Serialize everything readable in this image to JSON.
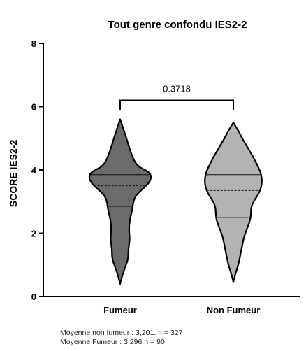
{
  "chart_data": {
    "type": "violin",
    "title": "Tout genre confondu IES2-2",
    "xlabel": "",
    "ylabel": "SCORE IES2-2",
    "ylim": [
      0,
      8
    ],
    "yticks": [
      0,
      2,
      4,
      6,
      8
    ],
    "categories": [
      "Fumeur",
      "Non Fumeur"
    ],
    "comparison": {
      "between": [
        "Fumeur",
        "Non Fumeur"
      ],
      "p_value": "0.3718"
    },
    "series": [
      {
        "category": "Fumeur",
        "color": "#6b6b6b",
        "min": 0.4,
        "max": 5.6,
        "median": 3.5,
        "q1": 2.85,
        "q3": 3.85,
        "profile": [
          [
            0.4,
            0.0
          ],
          [
            0.6,
            0.05
          ],
          [
            0.9,
            0.15
          ],
          [
            1.2,
            0.26
          ],
          [
            1.5,
            0.26
          ],
          [
            1.8,
            0.31
          ],
          [
            2.1,
            0.28
          ],
          [
            2.4,
            0.3
          ],
          [
            2.7,
            0.38
          ],
          [
            3.0,
            0.42
          ],
          [
            3.2,
            0.5
          ],
          [
            3.4,
            0.72
          ],
          [
            3.6,
            0.93
          ],
          [
            3.8,
            1.0
          ],
          [
            3.95,
            0.9
          ],
          [
            4.1,
            0.58
          ],
          [
            4.3,
            0.44
          ],
          [
            4.5,
            0.36
          ],
          [
            4.8,
            0.26
          ],
          [
            5.0,
            0.2
          ],
          [
            5.3,
            0.1
          ],
          [
            5.6,
            0.0
          ]
        ]
      },
      {
        "category": "Non Fumeur",
        "color": "#b3b3b3",
        "min": 0.45,
        "max": 5.5,
        "median": 3.35,
        "q1": 2.5,
        "q3": 3.85,
        "profile": [
          [
            0.45,
            0.0
          ],
          [
            0.7,
            0.06
          ],
          [
            1.0,
            0.16
          ],
          [
            1.3,
            0.22
          ],
          [
            1.6,
            0.28
          ],
          [
            1.9,
            0.34
          ],
          [
            2.2,
            0.46
          ],
          [
            2.5,
            0.56
          ],
          [
            2.8,
            0.56
          ],
          [
            3.0,
            0.64
          ],
          [
            3.3,
            0.84
          ],
          [
            3.6,
            0.92
          ],
          [
            3.9,
            0.88
          ],
          [
            4.2,
            0.74
          ],
          [
            4.5,
            0.58
          ],
          [
            4.8,
            0.4
          ],
          [
            5.0,
            0.28
          ],
          [
            5.2,
            0.18
          ],
          [
            5.5,
            0.0
          ]
        ]
      }
    ]
  },
  "footnotes": {
    "line1_prefix": "Moyenne ",
    "line1_underlined": "non fumeur",
    "line1_suffix": " : 3,201. n = 327",
    "line2_prefix": "Moyenne ",
    "line2_underlined": "Fumeur",
    "line2_suffix": " : 3,296  n = 90"
  }
}
